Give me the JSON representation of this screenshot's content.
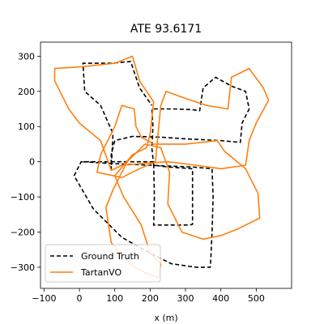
{
  "chart_data": {
    "type": "line",
    "title": "ATE 93.6171",
    "xlabel": "x (m)",
    "ylabel": "",
    "xlim": [
      -110,
      600
    ],
    "ylim": [
      -360,
      340
    ],
    "xticks": [
      -100,
      0,
      100,
      200,
      300,
      400,
      500
    ],
    "yticks": [
      -300,
      -200,
      -100,
      0,
      100,
      200,
      300
    ],
    "grid": false,
    "legend_position": "lower-left",
    "series": [
      {
        "name": "Ground Truth",
        "style": "dashed",
        "color": "#000000",
        "points": [
          [
            10,
            0
          ],
          [
            90,
            -5
          ],
          [
            200,
            -10
          ],
          [
            320,
            -15
          ],
          [
            375,
            -20
          ],
          [
            378,
            -100
          ],
          [
            375,
            -200
          ],
          [
            372,
            -265
          ],
          [
            370,
            -300
          ],
          [
            330,
            -300
          ],
          [
            260,
            -290
          ],
          [
            200,
            -260
          ],
          [
            120,
            -215
          ],
          [
            40,
            -135
          ],
          [
            -15,
            -40
          ],
          [
            5,
            0
          ],
          [
            90,
            0
          ],
          [
            150,
            0
          ],
          [
            210,
            0
          ],
          [
            212,
            -100
          ],
          [
            210,
            -180
          ],
          [
            260,
            -180
          ],
          [
            310,
            -180
          ],
          [
            320,
            -178
          ],
          [
            320,
            -120
          ],
          [
            320,
            -60
          ],
          [
            320,
            -20
          ],
          [
            250,
            -15
          ],
          [
            210,
            -10
          ],
          [
            205,
            40
          ],
          [
            208,
            100
          ],
          [
            205,
            150
          ],
          [
            270,
            150
          ],
          [
            320,
            148
          ],
          [
            340,
            145
          ],
          [
            350,
            210
          ],
          [
            385,
            240
          ],
          [
            430,
            215
          ],
          [
            470,
            200
          ],
          [
            480,
            150
          ],
          [
            460,
            110
          ],
          [
            455,
            55
          ],
          [
            400,
            60
          ],
          [
            300,
            65
          ],
          [
            230,
            70
          ],
          [
            150,
            72
          ],
          [
            100,
            60
          ],
          [
            90,
            20
          ],
          [
            90,
            -20
          ],
          [
            95,
            80
          ],
          [
            60,
            160
          ],
          [
            15,
            200
          ],
          [
            10,
            280
          ],
          [
            90,
            280
          ],
          [
            145,
            285
          ],
          [
            170,
            210
          ],
          [
            205,
            160
          ]
        ]
      },
      {
        "name": "TartanVO",
        "style": "solid",
        "color": "#ff7f0e",
        "points": [
          [
            5,
            270
          ],
          [
            100,
            280
          ],
          [
            150,
            300
          ],
          [
            170,
            230
          ],
          [
            210,
            170
          ],
          [
            200,
            80
          ],
          [
            190,
            40
          ],
          [
            150,
            20
          ],
          [
            100,
            -40
          ],
          [
            125,
            -100
          ],
          [
            175,
            -180
          ],
          [
            200,
            -260
          ],
          [
            230,
            -290
          ],
          [
            225,
            -330
          ],
          [
            185,
            -315
          ],
          [
            140,
            -290
          ],
          [
            90,
            -230
          ],
          [
            75,
            -130
          ],
          [
            95,
            -80
          ],
          [
            135,
            0
          ],
          [
            170,
            35
          ],
          [
            185,
            50
          ],
          [
            230,
            40
          ],
          [
            255,
            -30
          ],
          [
            250,
            -120
          ],
          [
            270,
            -160
          ],
          [
            290,
            -200
          ],
          [
            350,
            -220
          ],
          [
            400,
            -210
          ],
          [
            450,
            -190
          ],
          [
            510,
            -160
          ],
          [
            505,
            -90
          ],
          [
            470,
            -20
          ],
          [
            410,
            30
          ],
          [
            390,
            60
          ],
          [
            300,
            50
          ],
          [
            210,
            50
          ],
          [
            175,
            70
          ],
          [
            160,
            100
          ],
          [
            155,
            150
          ],
          [
            120,
            160
          ],
          [
            100,
            100
          ],
          [
            60,
            20
          ],
          [
            50,
            -30
          ],
          [
            120,
            -45
          ],
          [
            170,
            -20
          ],
          [
            215,
            0
          ],
          [
            230,
            160
          ],
          [
            245,
            200
          ],
          [
            300,
            180
          ],
          [
            360,
            160
          ],
          [
            420,
            150
          ],
          [
            430,
            240
          ],
          [
            480,
            265
          ],
          [
            520,
            210
          ],
          [
            535,
            175
          ],
          [
            500,
            110
          ],
          [
            480,
            60
          ],
          [
            470,
            -10
          ],
          [
            400,
            -20
          ],
          [
            330,
            -10
          ],
          [
            250,
            0
          ],
          [
            180,
            -5
          ],
          [
            120,
            -10
          ],
          [
            90,
            -25
          ],
          [
            60,
            60
          ],
          [
            0,
            110
          ],
          [
            -30,
            150
          ],
          [
            -70,
            230
          ],
          [
            -70,
            265
          ],
          [
            5,
            270
          ]
        ]
      }
    ]
  }
}
